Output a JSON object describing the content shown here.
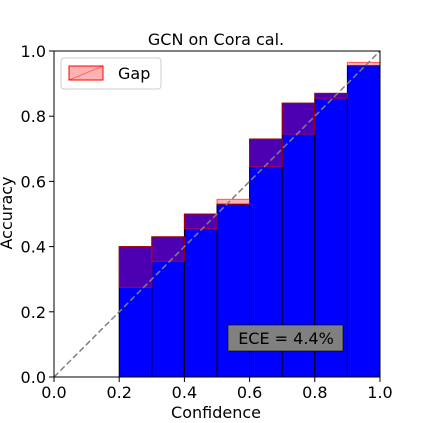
{
  "chart_data": {
    "type": "bar",
    "title": "GCN on Cora cal.",
    "xlabel": "Confidence",
    "ylabel": "Accuracy",
    "xlim": [
      0.0,
      1.0
    ],
    "ylim": [
      0.0,
      1.0
    ],
    "xticks": [
      "0.0",
      "0.2",
      "0.4",
      "0.6",
      "0.8",
      "1.0"
    ],
    "yticks": [
      "0.0",
      "0.2",
      "0.4",
      "0.6",
      "0.8",
      "1.0"
    ],
    "grid": false,
    "legend": {
      "position": "top-left",
      "entries": [
        "Gap"
      ]
    },
    "bin_edges": [
      0.0,
      0.1,
      0.2,
      0.3,
      0.4,
      0.5,
      0.6,
      0.7,
      0.8,
      0.9,
      1.0
    ],
    "series": [
      {
        "name": "",
        "values": [
          0,
          0,
          0.4,
          0.43,
          0.5,
          0.53,
          0.73,
          0.84,
          0.87,
          0.955
        ]
      }
    ],
    "gap_series": {
      "name": "Gap",
      "confidence": [
        0,
        0,
        0.275,
        0.355,
        0.455,
        0.545,
        0.645,
        0.745,
        0.855,
        0.965
      ]
    },
    "annotation": "ECE = 4.4%",
    "colors": {
      "bars": "#0000ff",
      "bar_edge": "#000000",
      "gap_fill": "#ff0000",
      "gap_edge": "#ff0000",
      "diagonal": "#808080",
      "annotation_box": "#808080"
    }
  }
}
